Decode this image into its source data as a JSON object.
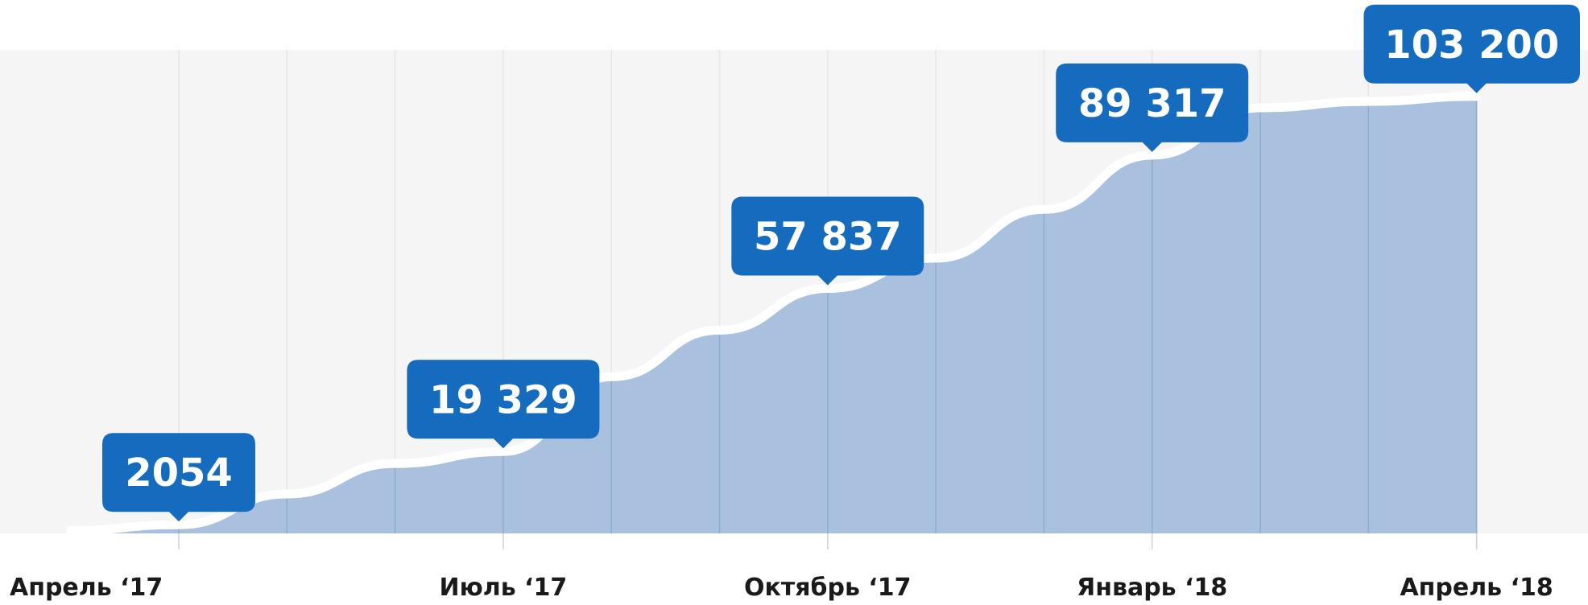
{
  "chart_data": {
    "type": "area",
    "title": "",
    "xlabel": "",
    "ylabel": "",
    "x": [
      "2017-03-15",
      "2017-04",
      "2017-05",
      "2017-06",
      "2017-07",
      "2017-08",
      "2017-09",
      "2017-10",
      "2017-11",
      "2017-12",
      "2018-01",
      "2018-02",
      "2018-03",
      "2018-04"
    ],
    "values": [
      700,
      2054,
      9300,
      16500,
      19329,
      37000,
      48000,
      57837,
      65000,
      76500,
      89317,
      100500,
      102000,
      103200
    ],
    "ylim": [
      0,
      125000
    ],
    "x_tick_labels": [
      {
        "x": "2017-04",
        "label": "Апрель ‘17"
      },
      {
        "x": "2017-07",
        "label": "Июль ‘17"
      },
      {
        "x": "2017-10",
        "label": "Октябрь ‘17"
      },
      {
        "x": "2018-01",
        "label": "Январь ‘18"
      },
      {
        "x": "2018-04",
        "label": "Апрель ‘18"
      }
    ],
    "annotations": [
      {
        "x": "2017-04",
        "value": 2054,
        "label": "2054"
      },
      {
        "x": "2017-07",
        "value": 19329,
        "label": "19 329"
      },
      {
        "x": "2017-10",
        "value": 57837,
        "label": "57 837"
      },
      {
        "x": "2018-01",
        "value": 89317,
        "label": "89 317"
      },
      {
        "x": "2018-04",
        "value": 103200,
        "label": "103 200"
      }
    ],
    "grid": true,
    "colors": {
      "plot_background": "#f5f5f5",
      "area_fill": "#a9c1df",
      "area_stroke": "#ffffff",
      "callout": "#156cbf",
      "gridline": "#e6e6e6",
      "divider": "#8fabd0"
    }
  }
}
